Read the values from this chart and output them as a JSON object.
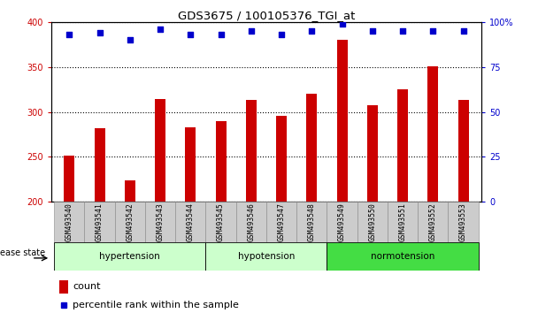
{
  "title": "GDS3675 / 100105376_TGI_at",
  "samples": [
    "GSM493540",
    "GSM493541",
    "GSM493542",
    "GSM493543",
    "GSM493544",
    "GSM493545",
    "GSM493546",
    "GSM493547",
    "GSM493548",
    "GSM493549",
    "GSM493550",
    "GSM493551",
    "GSM493552",
    "GSM493553"
  ],
  "counts": [
    251,
    282,
    224,
    314,
    283,
    290,
    313,
    296,
    320,
    380,
    307,
    325,
    351,
    313
  ],
  "percentiles": [
    93,
    94,
    90,
    96,
    93,
    93,
    95,
    93,
    95,
    99,
    95,
    95,
    95,
    95
  ],
  "bar_color": "#cc0000",
  "dot_color": "#0000cc",
  "ylim_left": [
    200,
    400
  ],
  "ylim_right": [
    0,
    100
  ],
  "yticks_left": [
    200,
    250,
    300,
    350,
    400
  ],
  "yticks_right": [
    0,
    25,
    50,
    75,
    100
  ],
  "groups": [
    {
      "label": "hypertension",
      "start": 0,
      "end": 5,
      "color": "#ccffcc"
    },
    {
      "label": "hypotension",
      "start": 5,
      "end": 9,
      "color": "#ccffcc"
    },
    {
      "label": "normotension",
      "start": 9,
      "end": 14,
      "color": "#44dd44"
    }
  ],
  "legend_count_label": "count",
  "legend_pct_label": "percentile rank within the sample",
  "disease_state_label": "disease state",
  "xtick_bg_color": "#cccccc",
  "background_color": "#ffffff"
}
